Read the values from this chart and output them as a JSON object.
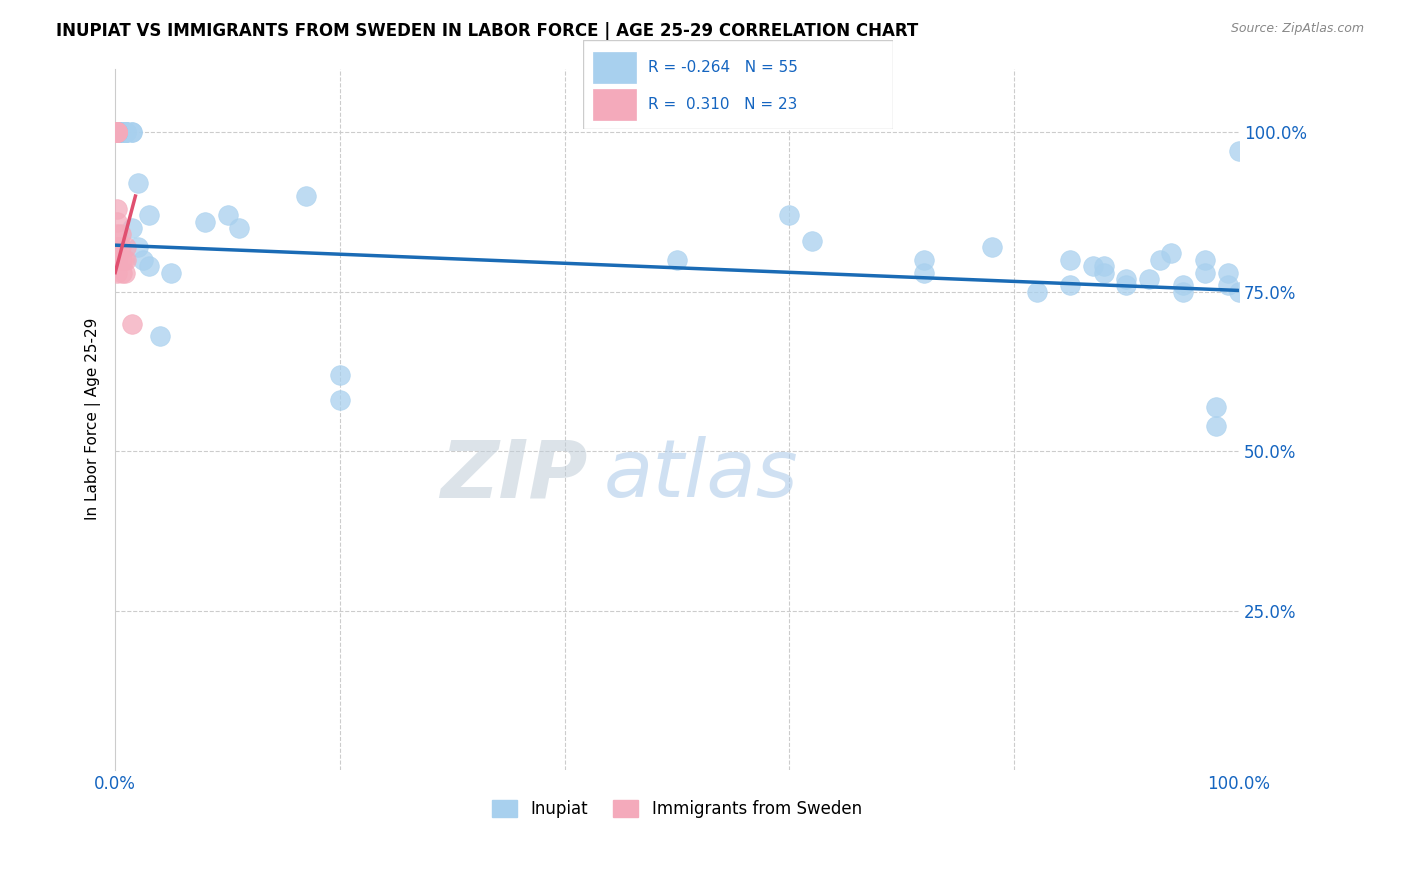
{
  "title": "INUPIAT VS IMMIGRANTS FROM SWEDEN IN LABOR FORCE | AGE 25-29 CORRELATION CHART",
  "source": "Source: ZipAtlas.com",
  "ylabel": "In Labor Force | Age 25-29",
  "y_tick_labels_right": [
    "100.0%",
    "75.0%",
    "50.0%",
    "25.0%"
  ],
  "y_tick_positions": [
    1.0,
    0.75,
    0.5,
    0.25
  ],
  "xlim": [
    0.0,
    1.0
  ],
  "ylim": [
    0.0,
    1.1
  ],
  "bottom_legend": [
    "Inupiat",
    "Immigrants from Sweden"
  ],
  "blue_color": "#A8D0EE",
  "pink_color": "#F4AABB",
  "line_blue": "#1A6BB5",
  "line_pink": "#E05070",
  "text_color": "#1565C0",
  "grid_color": "#cccccc",
  "watermark_zip": "ZIP",
  "watermark_atlas": "atlas",
  "inupiat_x": [
    0.005,
    0.005,
    0.005,
    0.005,
    0.005,
    0.005,
    0.005,
    0.01,
    0.01,
    0.01,
    0.01,
    0.01,
    0.015,
    0.015,
    0.015,
    0.02,
    0.02,
    0.025,
    0.03,
    0.03,
    0.04,
    0.05,
    0.08,
    0.1,
    0.11,
    0.17,
    0.2,
    0.2,
    0.5,
    0.6,
    0.62,
    0.72,
    0.72,
    0.78,
    0.82,
    0.85,
    0.85,
    0.87,
    0.88,
    0.88,
    0.9,
    0.9,
    0.92,
    0.93,
    0.94,
    0.95,
    0.95,
    0.97,
    0.97,
    0.98,
    0.98,
    0.99,
    0.99,
    1.0,
    1.0
  ],
  "inupiat_y": [
    1.0,
    1.0,
    1.0,
    1.0,
    1.0,
    1.0,
    1.0,
    1.0,
    1.0,
    1.0,
    1.0,
    1.0,
    1.0,
    1.0,
    0.85,
    0.92,
    0.82,
    0.8,
    0.87,
    0.79,
    0.68,
    0.78,
    0.86,
    0.87,
    0.85,
    0.9,
    0.62,
    0.58,
    0.8,
    0.87,
    0.83,
    0.8,
    0.78,
    0.82,
    0.75,
    0.8,
    0.76,
    0.79,
    0.79,
    0.78,
    0.77,
    0.76,
    0.77,
    0.8,
    0.81,
    0.76,
    0.75,
    0.8,
    0.78,
    0.57,
    0.54,
    0.78,
    0.76,
    0.75,
    0.97
  ],
  "sweden_x": [
    0.002,
    0.002,
    0.002,
    0.002,
    0.002,
    0.002,
    0.002,
    0.002,
    0.002,
    0.002,
    0.002,
    0.002,
    0.002,
    0.002,
    0.005,
    0.005,
    0.006,
    0.006,
    0.008,
    0.009,
    0.01,
    0.01,
    0.015
  ],
  "sweden_y": [
    1.0,
    1.0,
    1.0,
    1.0,
    1.0,
    1.0,
    1.0,
    1.0,
    0.88,
    0.86,
    0.84,
    0.82,
    0.8,
    0.78,
    0.84,
    0.82,
    0.8,
    0.78,
    0.8,
    0.78,
    0.82,
    0.8,
    0.7
  ],
  "trendline_blue_x0": 0.0,
  "trendline_blue_y0": 0.823,
  "trendline_blue_x1": 1.0,
  "trendline_blue_y1": 0.752,
  "trendline_pink_x0": 0.0,
  "trendline_pink_y0": 0.78,
  "trendline_pink_x1": 0.018,
  "trendline_pink_y1": 0.9
}
